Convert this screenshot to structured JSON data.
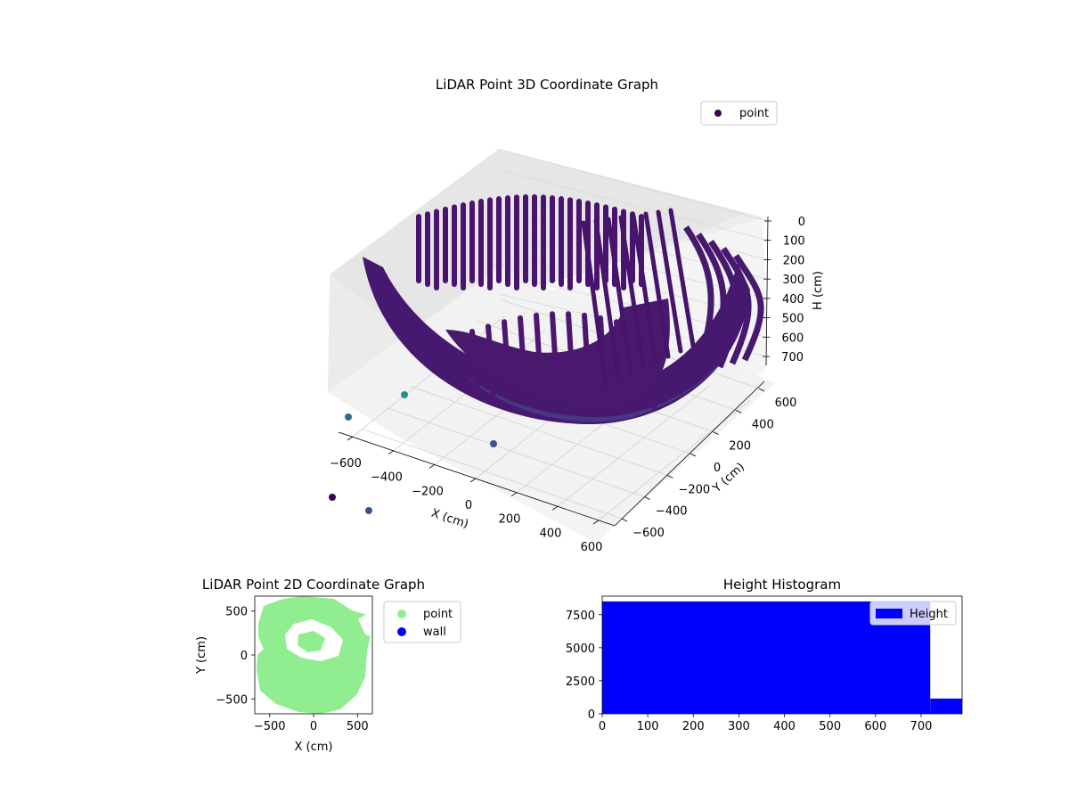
{
  "chart_data": [
    {
      "type": "scatter3d",
      "title": "LiDAR Point 3D Coordinate Graph",
      "xlabel": "X (cm)",
      "ylabel": "Y (cm)",
      "zlabel": "H (cm)",
      "xlim": [
        -700,
        700
      ],
      "ylim": [
        -700,
        700
      ],
      "zlim": [
        0,
        780
      ],
      "z_inverted": true,
      "x_ticks": [
        "−600",
        "−400",
        "−200",
        "0",
        "200",
        "400",
        "600"
      ],
      "y_ticks": [
        "−600",
        "−400",
        "−200",
        "0",
        "200",
        "400",
        "600"
      ],
      "z_ticks": [
        "0",
        "100",
        "200",
        "300",
        "400",
        "500",
        "600",
        "700"
      ],
      "legend": {
        "entries": [
          "point"
        ],
        "placement": "top-right"
      },
      "grid": true,
      "colormap": "viridis",
      "marker_color": "#440154",
      "series": [
        {
          "name": "point",
          "shape": "bowl",
          "radius_cm": 640,
          "rim_h_cm": 80,
          "bottom_h_cm": 740,
          "outliers": [
            {
              "x": -640,
              "y": -700,
              "h": 880,
              "color": "#440154"
            },
            {
              "x": -560,
              "y": -790,
              "h": 800,
              "color": "#3b528b"
            },
            {
              "x": -600,
              "y": -350,
              "h": 790,
              "color": "#31688e"
            },
            {
              "x": -420,
              "y": -200,
              "h": 780,
              "color": "#21918c"
            },
            {
              "x": -150,
              "y": -500,
              "h": 780,
              "color": "#3b528b"
            }
          ]
        }
      ]
    },
    {
      "type": "scatter",
      "title": "LiDAR Point 2D Coordinate Graph",
      "xlabel": "X (cm)",
      "ylabel": "Y (cm)",
      "xlim": [
        -670,
        670
      ],
      "ylim": [
        -670,
        670
      ],
      "x_ticks": [
        "−500",
        "0",
        "500"
      ],
      "y_ticks": [
        "−500",
        "0",
        "500"
      ],
      "legend": {
        "entries": [
          "point",
          "wall"
        ],
        "placement": "outside-right"
      },
      "series": [
        {
          "name": "point",
          "color": "#90ee90",
          "region": "disk",
          "radius": 640
        },
        {
          "name": "wall",
          "color": "#0000ff",
          "values": []
        }
      ]
    },
    {
      "type": "bar",
      "title": "Height Histogram",
      "xlabel": "",
      "ylabel": "",
      "xlim": [
        0,
        790
      ],
      "ylim": [
        0,
        8900
      ],
      "x_ticks": [
        "0",
        "100",
        "200",
        "300",
        "400",
        "500",
        "600",
        "700"
      ],
      "y_ticks": [
        "0",
        "2500",
        "5000",
        "7500"
      ],
      "legend": {
        "entries": [
          "Height"
        ],
        "placement": "top-right"
      },
      "color": "#0000ff",
      "series": [
        {
          "name": "Height",
          "bins": [
            {
              "x0": 0,
              "x1": 720,
              "count": 8500
            },
            {
              "x0": 720,
              "x1": 790,
              "count": 1150
            }
          ]
        }
      ]
    }
  ]
}
